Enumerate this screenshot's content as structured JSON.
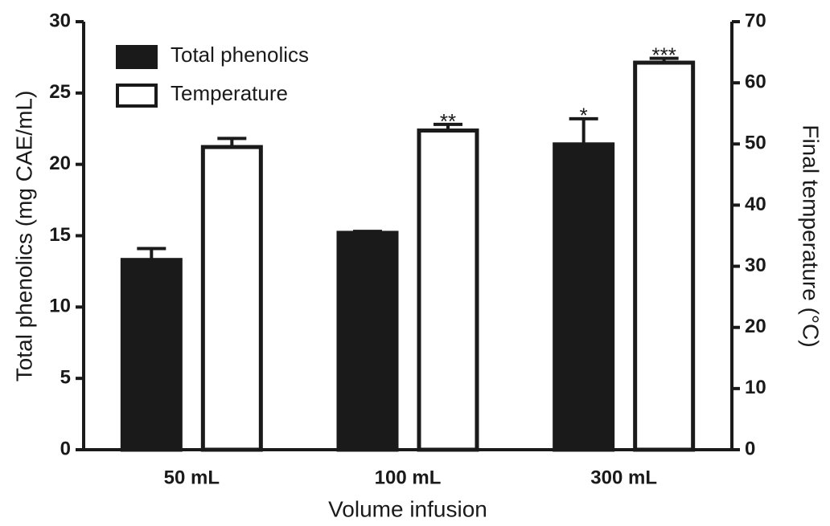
{
  "chart_data": {
    "type": "bar",
    "x_label": "Volume infusion",
    "y_label": "Total phenolics (mg CAE/mL)",
    "y2_label": "Final temperature (°C)",
    "categories": [
      "50 mL",
      "100 mL",
      "300 mL"
    ],
    "series": [
      {
        "name": "Total phenolics",
        "color": "#1a1a1a",
        "values": [
          13.3,
          15.2,
          21.4
        ],
        "errors": [
          0.8,
          0.1,
          1.8
        ]
      },
      {
        "name": "Temperature",
        "color": "#ffffff",
        "axis": "y2",
        "values": [
          49.5,
          52.2,
          63.3
        ],
        "errors": [
          1.4,
          1.0,
          0.7
        ]
      }
    ],
    "annotations": [
      {
        "text": "*",
        "series": 0,
        "index": 2
      },
      {
        "text": "**",
        "series": 1,
        "index": 1
      },
      {
        "text": "***",
        "series": 1,
        "index": 2
      }
    ],
    "ylim": [
      0,
      30
    ],
    "yticks": [
      0,
      5,
      10,
      15,
      20,
      25,
      30
    ],
    "y2lim": [
      0,
      70
    ],
    "y2ticks": [
      0,
      10,
      20,
      30,
      40,
      50,
      60,
      70
    ],
    "legend": "upper-left"
  }
}
